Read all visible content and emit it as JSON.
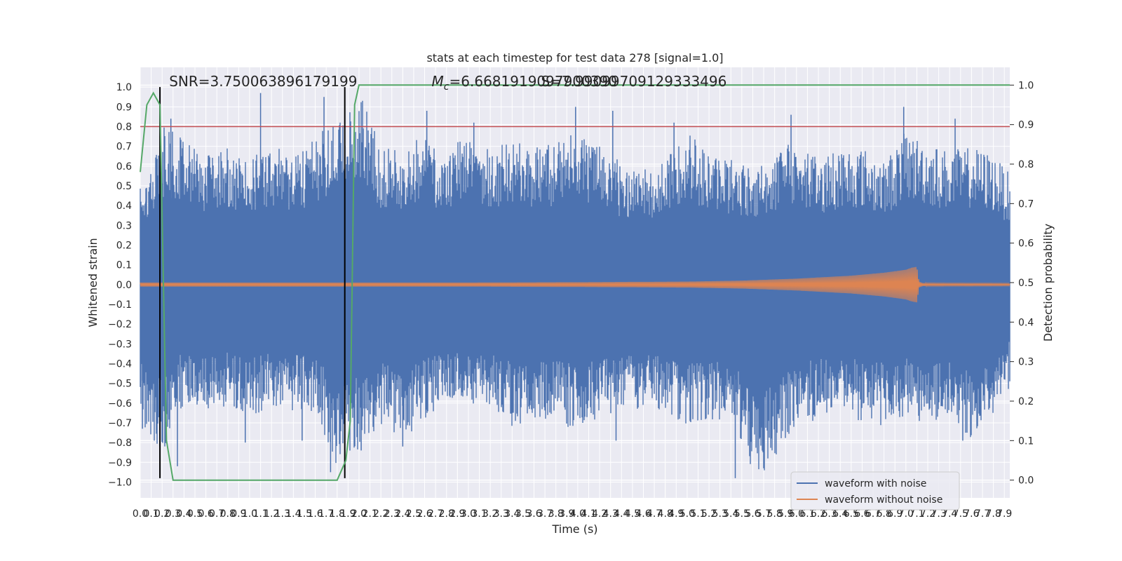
{
  "chart_data": {
    "type": "line",
    "title": "stats at each timestep for test data 278 [signal=1.0]",
    "xlabel": "Time (s)",
    "ylabel": "Whitened strain",
    "y2label": "Detection probability",
    "xlim": [
      0.0,
      7.95
    ],
    "ylim": [
      -1.08,
      1.1
    ],
    "y2lim": [
      -0.045,
      1.045
    ],
    "x_ticks": [
      0.0,
      0.1,
      0.2,
      0.3,
      0.4,
      0.5,
      0.6,
      0.7,
      0.8,
      0.9,
      1.0,
      1.1,
      1.2,
      1.3,
      1.4,
      1.5,
      1.6,
      1.7,
      1.8,
      1.9,
      2.0,
      2.1,
      2.2,
      2.3,
      2.4,
      2.5,
      2.6,
      2.7,
      2.8,
      2.9,
      3.0,
      3.1,
      3.2,
      3.3,
      3.4,
      3.5,
      3.6,
      3.7,
      3.8,
      3.9,
      4.0,
      4.1,
      4.2,
      4.3,
      4.4,
      4.5,
      4.6,
      4.7,
      4.8,
      4.9,
      5.0,
      5.1,
      5.2,
      5.3,
      5.4,
      5.5,
      5.6,
      5.7,
      5.8,
      5.9,
      6.0,
      6.1,
      6.2,
      6.3,
      6.4,
      6.5,
      6.6,
      6.7,
      6.8,
      6.9,
      7.0,
      7.1,
      7.2,
      7.3,
      7.4,
      7.5,
      7.6,
      7.7,
      7.8,
      7.9
    ],
    "x_tick_labels": [
      "0.0",
      "0.1",
      "0.2",
      "0.3",
      "0.4",
      "0.5",
      "0.6",
      "0.7",
      "0.8",
      "0.9",
      "1.0",
      "1.1",
      "1.2",
      "1.3",
      "1.4",
      "1.5",
      "1.6",
      "1.7",
      "1.8",
      "1.9",
      "2.0",
      "2.1",
      "2.2",
      "2.3",
      "2.4",
      "2.5",
      "2.6",
      "2.7",
      "2.8",
      "2.9",
      "3.0",
      "3.1",
      "3.2",
      "3.3",
      "3.4",
      "3.5",
      "3.6",
      "3.7",
      "3.8",
      "3.9",
      "4.0",
      "4.1",
      "4.2",
      "4.3",
      "4.4",
      "4.5",
      "4.6",
      "4.7",
      "4.8",
      "4.9",
      "5.0",
      "5.1",
      "5.2",
      "5.3",
      "5.4",
      "5.5",
      "5.6",
      "5.7",
      "5.8",
      "5.9",
      "6.0",
      "6.1",
      "6.2",
      "6.3",
      "6.4",
      "6.5",
      "6.6",
      "6.7",
      "6.8",
      "6.9",
      "7.0",
      "7.1",
      "7.2",
      "7.3",
      "7.4",
      "7.5",
      "7.6",
      "7.7",
      "7.8",
      "7.9"
    ],
    "y_ticks": [
      1.0,
      0.9,
      0.8,
      0.7,
      0.6,
      0.5,
      0.4,
      0.3,
      0.2,
      0.1,
      0.0,
      -0.1,
      -0.2,
      -0.3,
      -0.4,
      -0.5,
      -0.6,
      -0.7,
      -0.8,
      -0.9,
      -1.0
    ],
    "y_tick_labels": [
      "1.0",
      "0.9",
      "0.8",
      "0.7",
      "0.6",
      "0.5",
      "0.4",
      "0.3",
      "0.2",
      "0.1",
      "0.0",
      "−0.1",
      "−0.2",
      "−0.3",
      "−0.4",
      "−0.5",
      "−0.6",
      "−0.7",
      "−0.8",
      "−0.9",
      "−1.0"
    ],
    "y2_ticks": [
      1.0,
      0.9,
      0.8,
      0.7,
      0.6,
      0.5,
      0.4,
      0.3,
      0.2,
      0.1,
      0.0
    ],
    "y2_tick_labels": [
      "1.0",
      "0.9",
      "0.8",
      "0.7",
      "0.6",
      "0.5",
      "0.4",
      "0.3",
      "0.2",
      "0.1",
      "0.0"
    ],
    "grid": true,
    "legend_placement": "lower-right",
    "series": [
      {
        "name": "waveform with noise",
        "color": "#4c72b0",
        "axis": "left",
        "envelope": {
          "x": [
            0.0,
            0.2,
            0.4,
            0.6,
            0.8,
            1.0,
            1.2,
            1.4,
            1.6,
            1.8,
            2.0,
            2.2,
            2.4,
            2.6,
            2.8,
            3.0,
            3.2,
            3.4,
            3.6,
            3.8,
            4.0,
            4.2,
            4.4,
            4.6,
            4.8,
            5.0,
            5.2,
            5.4,
            5.6,
            5.8,
            6.0,
            6.2,
            6.4,
            6.6,
            6.8,
            7.0,
            7.2,
            7.4,
            7.6,
            7.8,
            7.95
          ],
          "upper": [
            0.52,
            0.8,
            0.75,
            0.65,
            0.7,
            0.65,
            0.72,
            0.66,
            0.75,
            0.86,
            1.0,
            0.7,
            0.68,
            0.78,
            0.62,
            0.82,
            0.7,
            0.74,
            0.7,
            0.72,
            0.8,
            0.7,
            0.62,
            0.6,
            0.62,
            0.8,
            0.66,
            0.65,
            0.6,
            0.66,
            0.74,
            0.64,
            0.7,
            0.7,
            0.62,
            0.78,
            0.72,
            0.68,
            0.7,
            0.66,
            0.56
          ],
          "lower": [
            -0.72,
            -0.85,
            -0.6,
            -0.65,
            -0.62,
            -0.68,
            -0.62,
            -0.64,
            -0.66,
            -0.92,
            -0.84,
            -0.72,
            -0.8,
            -0.68,
            -0.62,
            -0.6,
            -0.62,
            -0.72,
            -0.7,
            -0.7,
            -0.74,
            -0.68,
            -0.66,
            -0.62,
            -0.64,
            -0.72,
            -0.68,
            -0.7,
            -0.97,
            -0.92,
            -0.72,
            -0.68,
            -0.66,
            -0.7,
            -0.72,
            -0.66,
            -0.72,
            -0.7,
            -0.78,
            -0.68,
            -0.52
          ],
          "spikes_up": [
            [
              0.05,
              0.42
            ],
            [
              0.28,
              0.84
            ],
            [
              1.1,
              0.97
            ],
            [
              1.68,
              0.95
            ],
            [
              2.62,
              0.88
            ],
            [
              3.05,
              0.82
            ],
            [
              3.98,
              0.9
            ],
            [
              4.32,
              0.88
            ],
            [
              4.88,
              0.82
            ],
            [
              5.95,
              0.86
            ],
            [
              6.98,
              0.9
            ],
            [
              7.45,
              0.84
            ]
          ],
          "spikes_down": [
            [
              0.02,
              -0.73
            ],
            [
              0.34,
              -0.92
            ],
            [
              0.96,
              -0.8
            ],
            [
              1.48,
              -0.79
            ],
            [
              1.74,
              -0.95
            ],
            [
              2.02,
              -0.84
            ],
            [
              2.4,
              -0.82
            ],
            [
              4.35,
              -0.79
            ],
            [
              5.44,
              -0.98
            ],
            [
              5.7,
              -0.93
            ],
            [
              7.52,
              -0.79
            ]
          ]
        }
      },
      {
        "name": "waveform without noise",
        "color": "#dd8452",
        "axis": "left",
        "chirp": {
          "x": [
            0.0,
            1.0,
            2.0,
            3.0,
            4.0,
            5.0,
            5.5,
            6.0,
            6.5,
            6.8,
            7.0,
            7.05,
            7.1,
            7.12,
            7.15,
            7.2,
            7.95
          ],
          "amplitude": [
            0.01,
            0.01,
            0.01,
            0.01,
            0.012,
            0.015,
            0.02,
            0.03,
            0.045,
            0.06,
            0.075,
            0.085,
            0.09,
            0.015,
            0.008,
            0.006,
            0.005
          ]
        }
      },
      {
        "name": "detection probability",
        "color": "#55a868",
        "axis": "right",
        "x": [
          0.0,
          0.06,
          0.12,
          0.18,
          0.24,
          0.3,
          0.36,
          1.0,
          1.5,
          1.8,
          1.88,
          1.92,
          1.96,
          2.0,
          7.95
        ],
        "y": [
          0.78,
          0.95,
          0.98,
          0.95,
          0.1,
          0.0,
          0.0,
          0.0,
          0.0,
          0.0,
          0.05,
          0.15,
          0.95,
          1.0,
          1.0
        ]
      },
      {
        "name": "threshold",
        "color": "#c44e52",
        "axis": "left",
        "x": [
          0.0,
          7.95
        ],
        "y": [
          0.8,
          0.8
        ]
      }
    ],
    "vertical_markers": [
      {
        "x": 0.18,
        "ymin": -0.98,
        "ymax": 1.0,
        "color": "#000000"
      },
      {
        "x": 1.87,
        "ymin": -0.98,
        "ymax": 1.0,
        "color": "#000000"
      }
    ],
    "annotations": [
      {
        "text": "SNR=3.750063896179199",
        "x": 0.2,
        "y": 1.0
      },
      {
        "text": "M",
        "sub": "c",
        "rest": "=6.6681919097900390",
        "x": 2.6,
        "y": 1.0
      },
      {
        "text": "S=7.99099709129333496",
        "x": 3.6,
        "y": 1.0
      }
    ]
  }
}
